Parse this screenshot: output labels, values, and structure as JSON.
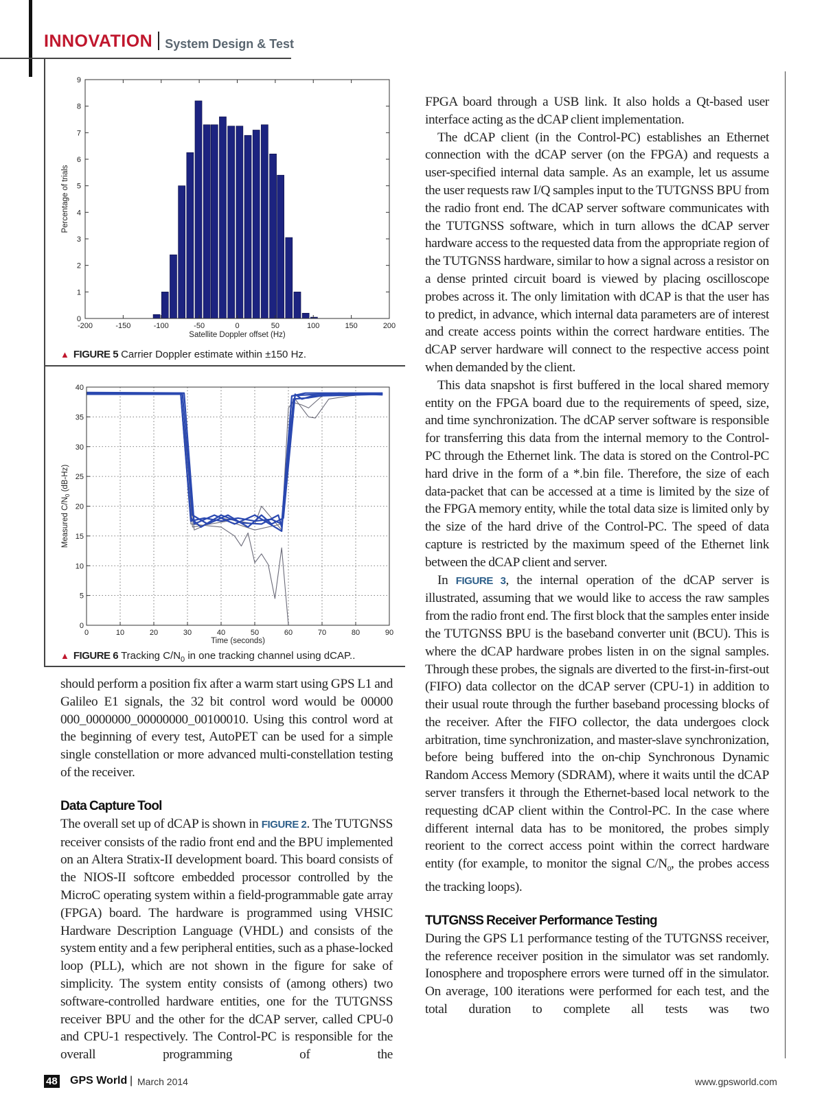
{
  "header": {
    "section": "INNOVATION",
    "subsection": "System Design & Test"
  },
  "figures": {
    "fig5": {
      "label": "FIGURE 5",
      "caption": "Carrier Doppler estimate within ±150 Hz."
    },
    "fig6": {
      "label": "FIGURE 6",
      "caption_pre": "Tracking C/N",
      "caption_sub": "0",
      "caption_post": " in one tracking channel using dCAP.."
    }
  },
  "chart_data": [
    {
      "type": "bar",
      "title": "",
      "xlabel": "Satellite Doppler offset (Hz)",
      "ylabel": "Percentage of trials",
      "xlim": [
        -200,
        200
      ],
      "ylim": [
        0,
        9
      ],
      "xticks": [
        "-200",
        "-150",
        "-100",
        "-50",
        "0",
        "50",
        "100",
        "150",
        "200"
      ],
      "yticks": [
        "0",
        "1",
        "2",
        "3",
        "4",
        "5",
        "6",
        "7",
        "8",
        "9"
      ],
      "grid": false,
      "bar_color": "#1c2380",
      "bin_width": 10.9,
      "x": [
        -106,
        -95,
        -84,
        -73,
        -62,
        -51,
        -40,
        -30,
        -19,
        -8,
        3,
        14,
        25,
        36,
        47,
        57,
        68,
        79,
        90,
        101
      ],
      "values": [
        0.15,
        1.0,
        2.4,
        5.0,
        6.25,
        8.2,
        7.3,
        7.3,
        7.6,
        7.25,
        7.25,
        6.9,
        7.1,
        7.3,
        6.2,
        5.4,
        3.05,
        1.0,
        0.2,
        0.05
      ]
    },
    {
      "type": "line",
      "title": "",
      "xlabel": "Time (seconds)",
      "ylabel_pre": "Measured C/N",
      "ylabel_sub": "0",
      "ylabel_post": " (dB-Hz)",
      "xlim": [
        0,
        90
      ],
      "ylim": [
        0,
        40
      ],
      "xticks": [
        "0",
        "10",
        "20",
        "30",
        "40",
        "50",
        "60",
        "70",
        "80",
        "90"
      ],
      "yticks": [
        "0",
        "5",
        "10",
        "15",
        "20",
        "25",
        "30",
        "35",
        "40"
      ],
      "grid": true,
      "colors": {
        "main": "#2a48b0",
        "outlier": "#6a6a78"
      },
      "series": [
        {
          "style": "main",
          "points": [
            [
              0,
              39
            ],
            [
              28,
              39
            ],
            [
              31,
              17.5
            ],
            [
              35,
              18
            ],
            [
              40,
              17.5
            ],
            [
              45,
              18
            ],
            [
              50,
              17.5
            ],
            [
              55,
              17.8
            ],
            [
              58,
              17
            ],
            [
              61,
              38.5
            ],
            [
              65,
              39
            ],
            [
              88,
              39
            ]
          ]
        },
        {
          "style": "main",
          "points": [
            [
              0,
              38.8
            ],
            [
              28.5,
              38.8
            ],
            [
              31.5,
              18.5
            ],
            [
              36,
              17
            ],
            [
              42,
              18.5
            ],
            [
              48,
              16.5
            ],
            [
              52,
              18.5
            ],
            [
              55,
              17
            ],
            [
              58.5,
              18
            ],
            [
              62,
              38.8
            ],
            [
              64,
              38
            ],
            [
              67,
              38.5
            ],
            [
              88,
              38.8
            ]
          ]
        },
        {
          "style": "main",
          "points": [
            [
              0,
              39.1
            ],
            [
              29,
              39
            ],
            [
              32,
              17
            ],
            [
              38,
              18.5
            ],
            [
              44,
              17
            ],
            [
              50,
              18.5
            ],
            [
              56,
              16.5
            ],
            [
              58,
              15.8
            ],
            [
              60.5,
              33
            ],
            [
              62,
              38.6
            ],
            [
              70,
              38.8
            ],
            [
              88,
              38.9
            ]
          ]
        },
        {
          "style": "main",
          "points": [
            [
              0,
              38.9
            ],
            [
              28,
              38.9
            ],
            [
              31,
              18
            ],
            [
              34,
              16.5
            ],
            [
              40,
              18.5
            ],
            [
              46,
              17.2
            ],
            [
              52,
              17
            ],
            [
              57,
              18.5
            ],
            [
              58,
              16.5
            ],
            [
              61.5,
              38
            ],
            [
              66,
              38.2
            ],
            [
              75,
              39
            ],
            [
              88,
              38.7
            ]
          ]
        },
        {
          "style": "outlier",
          "points": [
            [
              0,
              39
            ],
            [
              28,
              39
            ],
            [
              31,
              17
            ],
            [
              40,
              16.5
            ],
            [
              44,
              15
            ],
            [
              46,
              13.3
            ],
            [
              48,
              15.5
            ],
            [
              50,
              10.5
            ],
            [
              52,
              12
            ],
            [
              54,
              10.2
            ],
            [
              56,
              4.5
            ],
            [
              58,
              13
            ],
            [
              60,
              0
            ]
          ]
        },
        {
          "style": "outlier",
          "points": [
            [
              0,
              39
            ],
            [
              28,
              39
            ],
            [
              32,
              16
            ],
            [
              40,
              18
            ],
            [
              50,
              17
            ],
            [
              52,
              20
            ],
            [
              58,
              16
            ],
            [
              60,
              36.5
            ],
            [
              62,
              38
            ],
            [
              66,
              35
            ],
            [
              68,
              34.8
            ],
            [
              72,
              38
            ],
            [
              78,
              38.5
            ],
            [
              88,
              39
            ]
          ]
        },
        {
          "style": "outlier",
          "points": [
            [
              0,
              39
            ],
            [
              28.5,
              39
            ],
            [
              31.5,
              16.5
            ],
            [
              42,
              17.5
            ],
            [
              50,
              16
            ],
            [
              58,
              17
            ],
            [
              61,
              37.5
            ],
            [
              64,
              37
            ],
            [
              66,
              36.5
            ],
            [
              70,
              38.5
            ],
            [
              88,
              38.8
            ]
          ]
        }
      ]
    }
  ],
  "left_column": [
    {
      "type": "p",
      "class": "noindent",
      "parts": [
        {
          "t": "should perform a position fix after a warm start using GPS L1 and Galileo E1 signals, the 32 bit control word would be 00000 000_0000000_00000000_00100010. Using this control word at the beginning of every test, AutoPET can be used for a simple single constellation or more advanced multi-constellation testing of the receiver."
        }
      ]
    },
    {
      "type": "h",
      "text": "Data Capture Tool"
    },
    {
      "type": "p",
      "class": "noindent last",
      "parts": [
        {
          "t": "The overall set up of dCAP is shown in "
        },
        {
          "f": "FIGURE 2"
        },
        {
          "t": ". The TUTGNSS receiver consists of the radio front end and the BPU implemented on an Altera Stratix-II development board. This board consists of the NIOS-II softcore embedded processor controlled by the MicroC operating system within a field-programmable gate array (FPGA) board. The hardware is programmed using VHSIC Hardware Description Language (VHDL) and consists of the system entity and a few peripheral entities, such as a phase-locked loop (PLL), which are not shown in the figure for sake of simplicity. The system entity consists of (among others) two software-controlled hardware entities, one for the TUTGNSS receiver BPU and the other for the dCAP server, called CPU-0 and CPU-1 respectively. The Control-PC is responsible for the overall programming of the"
        }
      ]
    }
  ],
  "right_column": [
    {
      "type": "p",
      "class": "noindent",
      "parts": [
        {
          "t": "FPGA board through a USB link. It also holds a Qt-based user interface acting as the dCAP client implementation."
        }
      ]
    },
    {
      "type": "p",
      "class": "",
      "parts": [
        {
          "t": "The dCAP client (in the Control-PC) establishes an Ethernet connection with the dCAP server (on the FPGA) and requests a user-specified internal data sample. As an example, let us assume the user requests raw I/Q samples input to the TUTGNSS BPU from the radio front end. The dCAP server software communicates with the TUTGNSS software, which in turn allows the dCAP server hardware access to the requested data from the appropriate region of the TUTGNSS hardware, similar to how a signal across a resistor on a dense printed circuit board is viewed by placing oscilloscope probes across it. The only limitation with dCAP is that the user has to predict, in advance, which internal data parameters are of interest and create access points within the correct hardware entities. The dCAP server hardware will connect to the respective access point when demanded by the client."
        }
      ]
    },
    {
      "type": "p",
      "class": "",
      "parts": [
        {
          "t": "This data snapshot is first buffered in the local shared memory entity on the FPGA board due to the requirements of speed, size, and time synchronization. The dCAP server software is responsible for transferring this data from the internal memory to the Control-PC through the Ethernet link. The data is stored on the Control-PC hard drive in the form of a *.bin file. Therefore, the size of each data-packet that can be accessed at a time is limited by the size of the FPGA memory entity, while the total data size is limited only by the size of the hard drive of the Control-PC. The speed of data capture is restricted by the maximum speed of the Ethernet link between the dCAP client and server."
        }
      ]
    },
    {
      "type": "p",
      "class": "",
      "parts": [
        {
          "t": "In "
        },
        {
          "f": "FIGURE 3"
        },
        {
          "t": ", the internal operation of the dCAP server is illustrated, assuming that we would like to access the raw samples from the radio front end. The first block that the samples enter inside the TUTGNSS BPU is the baseband converter unit (BCU). This is where the dCAP hardware probes listen in on the signal samples. Through these probes, the signals are diverted to the first-in-first-out (FIFO) data collector on the dCAP server (CPU-1) in addition to their usual route through the further baseband processing blocks of the receiver. After the FIFO collector, the data undergoes clock arbitration, time synchronization, and master-slave synchronization, before being buffered into the on-chip Synchronous Dynamic Random Access Memory (SDRAM), where it waits until the dCAP server transfers it through the Ethernet-based local network to the requesting dCAP client within the Control-PC. In the case where different internal data has to be monitored, the probes simply reorient to the correct access point within the correct hardware entity (for example, to monitor the signal C/N"
        },
        {
          "s": "0"
        },
        {
          "t": ", the probes access the tracking loops)."
        }
      ]
    },
    {
      "type": "h",
      "text": "TUTGNSS Receiver Performance Testing"
    },
    {
      "type": "p",
      "class": "noindent last",
      "parts": [
        {
          "t": "During the GPS L1 performance testing of the TUTGNSS receiver, the reference receiver position in the simulator was set randomly. Ionosphere and troposphere errors were turned off in the simulator. On average, 100 iterations were performed for each test, and the total duration to complete all tests was two"
        }
      ]
    }
  ],
  "footer": {
    "page": "48",
    "magazine": "GPS World",
    "separator": "|",
    "date": "March 2014",
    "url": "www.gpsworld.com"
  }
}
